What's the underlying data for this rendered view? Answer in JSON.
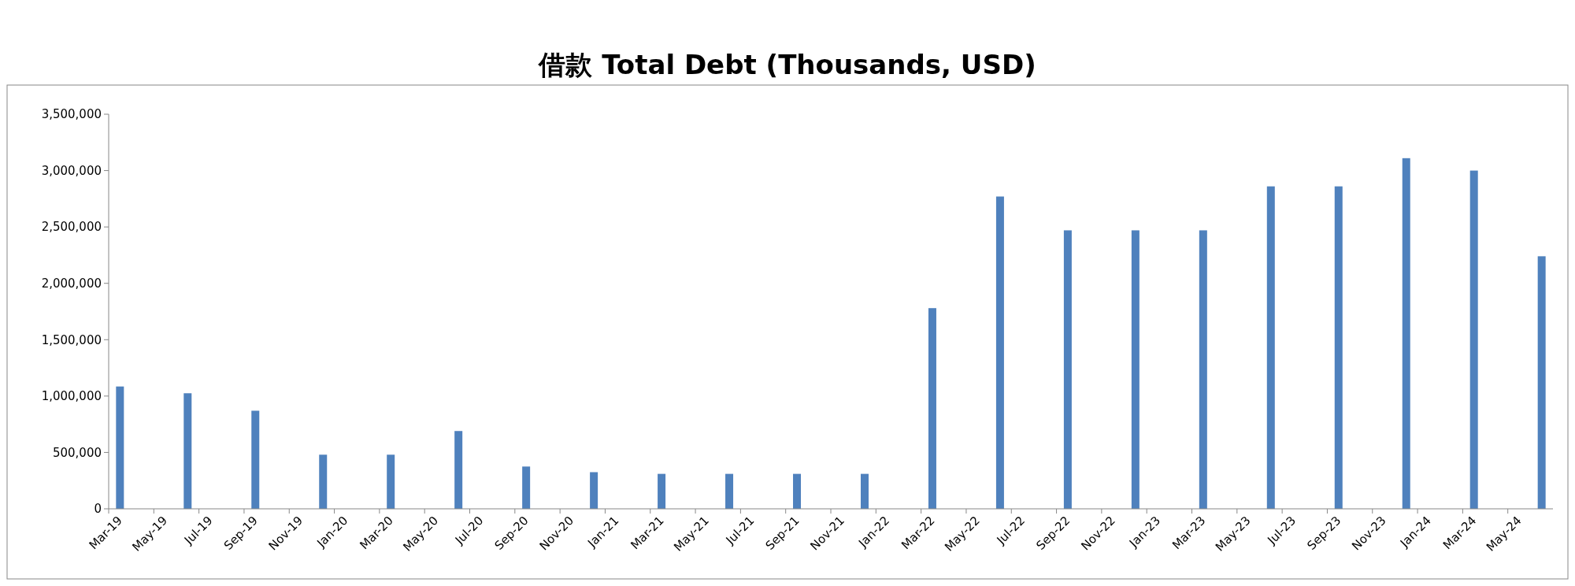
{
  "chart_data": {
    "type": "bar",
    "title": "借款 Total Debt (Thousands, USD)",
    "categories": [
      "Mar-19",
      null,
      "May-19",
      null,
      "Jul-19",
      null,
      "Sep-19",
      null,
      "Nov-19",
      null,
      "Jan-20",
      null,
      "Mar-20",
      null,
      "May-20",
      null,
      "Jul-20",
      null,
      "Sep-20",
      null,
      "Nov-20",
      null,
      "Jan-21",
      null,
      "Mar-21",
      null,
      "May-21",
      null,
      "Jul-21",
      null,
      "Sep-21",
      null,
      "Nov-21",
      null,
      "Jan-22",
      null,
      "Mar-22",
      null,
      "May-22",
      null,
      "Jul-22",
      null,
      "Sep-22",
      null,
      "Nov-22",
      null,
      "Jan-23",
      null,
      "Mar-23",
      null,
      "May-23",
      null,
      "Jul-23",
      null,
      "Sep-23",
      null,
      "Nov-23",
      null,
      "Jan-24",
      null,
      "Mar-24",
      null,
      "May-24",
      null
    ],
    "values": [
      1085000,
      null,
      null,
      1025000,
      null,
      null,
      870000,
      null,
      null,
      480000,
      null,
      null,
      480000,
      null,
      null,
      690000,
      null,
      null,
      375000,
      null,
      null,
      325000,
      null,
      null,
      310000,
      null,
      null,
      310000,
      null,
      null,
      310000,
      null,
      null,
      310000,
      null,
      null,
      1780000,
      null,
      null,
      2770000,
      null,
      null,
      2470000,
      null,
      null,
      2470000,
      null,
      null,
      2470000,
      null,
      null,
      2860000,
      null,
      null,
      2860000,
      null,
      null,
      3110000,
      null,
      null,
      3000000,
      null,
      null,
      2240000
    ],
    "color": "#4f81bd",
    "ylim": [
      0,
      3500000
    ],
    "yticks": [
      0,
      {
        "value": 500000,
        "label": "500,000"
      },
      {
        "value": 1000000,
        "label": "1,000,000"
      },
      {
        "value": 1500000,
        "label": "1,500,000"
      },
      {
        "value": 2000000,
        "label": "2,000,000"
      },
      {
        "value": 2500000,
        "label": "2,500,000"
      },
      {
        "value": 3000000,
        "label": "3,000,000"
      },
      {
        "value": 3500000,
        "label": "3,500,000"
      }
    ],
    "grid": false
  }
}
